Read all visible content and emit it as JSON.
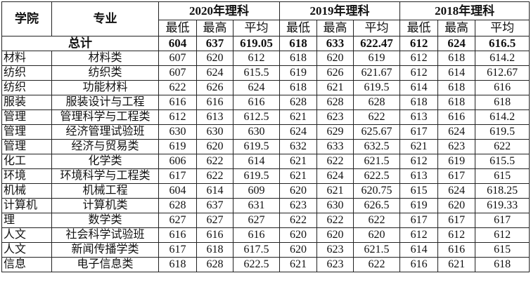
{
  "header": {
    "college": "学院",
    "major": "专业",
    "groups": [
      {
        "title": "2020年理科",
        "columns": [
          "最低",
          "最高",
          "平均"
        ]
      },
      {
        "title": "2019年理科",
        "columns": [
          "最低",
          "最高",
          "平均"
        ]
      },
      {
        "title": "2018年理科",
        "columns": [
          "最低",
          "最高",
          "平均"
        ]
      }
    ]
  },
  "total": {
    "label": "总计",
    "values": [
      "604",
      "637",
      "619.05",
      "618",
      "633",
      "622.47",
      "612",
      "624",
      "616.5"
    ]
  },
  "table": {
    "rows": [
      [
        "材料",
        "材料类",
        "607",
        "620",
        "612",
        "618",
        "620",
        "619",
        "612",
        "618",
        "614.2"
      ],
      [
        "纺织",
        "纺织类",
        "607",
        "624",
        "615.5",
        "619",
        "626",
        "621.67",
        "612",
        "614",
        "612.67"
      ],
      [
        "纺织",
        "功能材料",
        "622",
        "626",
        "624",
        "618",
        "621",
        "619.5",
        "614",
        "618",
        "616"
      ],
      [
        "服装",
        "服装设计与工程",
        "616",
        "616",
        "616",
        "628",
        "628",
        "628",
        "618",
        "618",
        "618"
      ],
      [
        "管理",
        "管理科学与工程类",
        "612",
        "613",
        "612.5",
        "621",
        "623",
        "622",
        "613",
        "616",
        "614.2"
      ],
      [
        "管理",
        "经济管理试验班",
        "630",
        "630",
        "630",
        "624",
        "629",
        "625.67",
        "617",
        "624",
        "619.5"
      ],
      [
        "管理",
        "经济与贸易类",
        "619",
        "620",
        "619.5",
        "632",
        "633",
        "632.5",
        "621",
        "623",
        "622"
      ],
      [
        "化工",
        "化学类",
        "606",
        "622",
        "614",
        "621",
        "622",
        "621.5",
        "612",
        "619",
        "615.5"
      ],
      [
        "环境",
        "环境科学与工程类",
        "617",
        "622",
        "619.5",
        "621",
        "624",
        "622.5",
        "613",
        "617",
        "615"
      ],
      [
        "机械",
        "机械工程",
        "604",
        "614",
        "609",
        "620",
        "621",
        "620.75",
        "615",
        "624",
        "618.25"
      ],
      [
        "计算机",
        "计算机类",
        "628",
        "637",
        "631",
        "623",
        "630",
        "626.5",
        "619",
        "620",
        "619.33"
      ],
      [
        "理",
        "数学类",
        "627",
        "627",
        "627",
        "622",
        "622",
        "622",
        "617",
        "617",
        "617"
      ],
      [
        "人文",
        "社会科学试验班",
        "616",
        "616",
        "616",
        "620",
        "620",
        "620",
        "612",
        "612",
        "612"
      ],
      [
        "人文",
        "新闻传播学类",
        "617",
        "618",
        "617.5",
        "620",
        "623",
        "621.5",
        "614",
        "616",
        "615"
      ],
      [
        "信息",
        "电子信息类",
        "618",
        "628",
        "622.5",
        "621",
        "623",
        "622",
        "616",
        "621",
        "618"
      ]
    ]
  }
}
